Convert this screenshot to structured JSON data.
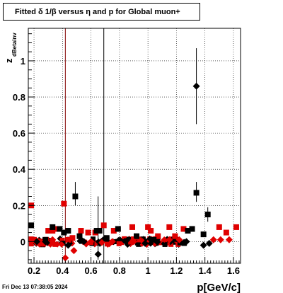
{
  "title": "Fitted δ 1/β versus η and p for Global muon+",
  "footer": "Fri Dec 13 07:38:05 2024",
  "chart_data": {
    "type": "scatter",
    "title": "Fitted δ 1/β versus η and p for Global muon+",
    "xlabel": "p[GeV/c]",
    "ylabel": "z",
    "ylabel_sub": "dBetainv",
    "xlim": [
      0.16,
      1.65
    ],
    "ylim": [
      -0.12,
      1.18
    ],
    "grid": true,
    "x_ticks": [
      0.2,
      0.4,
      0.6,
      0.8,
      1,
      1.2,
      1.4,
      1.6
    ],
    "x_tick_labels": [
      "0.2",
      "0.4",
      "0.6",
      "0.8",
      "1",
      "1.2",
      "1.4",
      "1.6"
    ],
    "y_ticks": [
      0,
      0.2,
      0.4,
      0.6,
      0.8,
      1
    ],
    "y_tick_labels": [
      "0",
      "0.2",
      "0.4",
      "0.6",
      "0.8",
      "1"
    ],
    "vertical_lines": [
      {
        "x": 0.42,
        "color": "#800000"
      },
      {
        "x": 0.69,
        "color": "#000000"
      }
    ],
    "series": [
      {
        "marker": "square",
        "color": "#e00000",
        "points": [
          {
            "x": 0.18,
            "y": 0.2
          },
          {
            "x": 0.2,
            "y": 0.01
          },
          {
            "x": 0.24,
            "y": 0.0
          },
          {
            "x": 0.27,
            "y": 0.0
          },
          {
            "x": 0.3,
            "y": 0.06
          },
          {
            "x": 0.33,
            "y": 0.06
          },
          {
            "x": 0.35,
            "y": 0.07
          },
          {
            "x": 0.41,
            "y": 0.21
          },
          {
            "x": 0.44,
            "y": 0.01
          },
          {
            "x": 0.47,
            "y": 0.02
          },
          {
            "x": 0.53,
            "y": 0.06
          },
          {
            "x": 0.58,
            "y": 0.05
          },
          {
            "x": 0.63,
            "y": 0.05
          },
          {
            "x": 0.69,
            "y": 0.09
          },
          {
            "x": 0.76,
            "y": 0.06
          },
          {
            "x": 0.89,
            "y": 0.08
          },
          {
            "x": 1.0,
            "y": 0.08
          },
          {
            "x": 1.02,
            "y": 0.06
          },
          {
            "x": 1.07,
            "y": 0.03
          },
          {
            "x": 1.15,
            "y": 0.08
          },
          {
            "x": 1.19,
            "y": 0.03
          },
          {
            "x": 1.25,
            "y": 0.07
          },
          {
            "x": 1.5,
            "y": 0.08
          },
          {
            "x": 1.55,
            "y": 0.05
          },
          {
            "x": 1.62,
            "y": 0.08
          }
        ]
      },
      {
        "marker": "square",
        "color": "#000000",
        "points": [
          {
            "x": 0.18,
            "y": 0.09
          },
          {
            "x": 0.28,
            "y": 0.01
          },
          {
            "x": 0.33,
            "y": 0.08
          },
          {
            "x": 0.38,
            "y": 0.07
          },
          {
            "x": 0.41,
            "y": 0.05
          },
          {
            "x": 0.44,
            "y": 0.06
          },
          {
            "x": 0.49,
            "y": 0.25
          },
          {
            "x": 0.52,
            "y": 0.03
          },
          {
            "x": 0.64,
            "y": 0.06
          },
          {
            "x": 0.66,
            "y": 0.06
          },
          {
            "x": 0.71,
            "y": 0.02
          },
          {
            "x": 0.79,
            "y": 0.07
          },
          {
            "x": 0.92,
            "y": 0.03
          },
          {
            "x": 1.04,
            "y": 0.01
          },
          {
            "x": 1.28,
            "y": 0.06
          },
          {
            "x": 1.31,
            "y": 0.07
          },
          {
            "x": 1.34,
            "y": 0.27
          },
          {
            "x": 1.39,
            "y": 0.04
          },
          {
            "x": 1.42,
            "y": 0.15
          }
        ]
      },
      {
        "marker": "diamond",
        "color": "#e00000",
        "points": [
          {
            "x": 0.21,
            "y": 0.0
          },
          {
            "x": 0.26,
            "y": -0.01
          },
          {
            "x": 0.33,
            "y": 0.01
          },
          {
            "x": 0.42,
            "y": -0.09
          },
          {
            "x": 0.48,
            "y": -0.05
          },
          {
            "x": 0.6,
            "y": 0.0
          },
          {
            "x": 0.75,
            "y": 0.0
          },
          {
            "x": 0.9,
            "y": 0.0
          },
          {
            "x": 1.15,
            "y": 0.01
          },
          {
            "x": 1.22,
            "y": 0.01
          },
          {
            "x": 1.46,
            "y": 0.01
          },
          {
            "x": 1.51,
            "y": 0.01
          },
          {
            "x": 1.57,
            "y": 0.01
          }
        ]
      },
      {
        "marker": "diamond",
        "color": "#000000",
        "points": [
          {
            "x": 0.22,
            "y": 0.0
          },
          {
            "x": 0.28,
            "y": 0.0
          },
          {
            "x": 0.44,
            "y": -0.02
          },
          {
            "x": 0.55,
            "y": 0.0
          },
          {
            "x": 0.65,
            "y": -0.07
          },
          {
            "x": 0.98,
            "y": -0.01
          },
          {
            "x": 1.27,
            "y": 0.0
          },
          {
            "x": 1.34,
            "y": 0.86
          },
          {
            "x": 1.39,
            "y": -0.02
          },
          {
            "x": 1.43,
            "y": -0.01
          }
        ]
      }
    ],
    "error_bars": [
      {
        "x": 0.49,
        "y_low": 0.2,
        "y_high": 0.33,
        "color": "#000000"
      },
      {
        "x": 0.65,
        "y_low": -0.1,
        "y_high": 0.25,
        "color": "#000000"
      },
      {
        "x": 1.34,
        "y_low": 0.65,
        "y_high": 1.07,
        "color": "#000000"
      },
      {
        "x": 1.34,
        "y_low": 0.22,
        "y_high": 0.33,
        "color": "#000000"
      },
      {
        "x": 1.42,
        "y_low": 0.11,
        "y_high": 0.19,
        "color": "#000000"
      }
    ]
  }
}
